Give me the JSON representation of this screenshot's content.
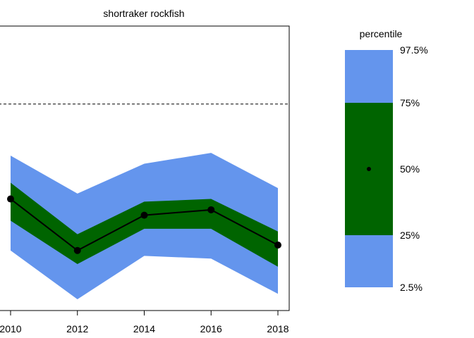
{
  "chart_data": {
    "type": "area",
    "title": "shortraker rockfish",
    "xlabel": "",
    "ylabel": "",
    "x": [
      2010,
      2012,
      2014,
      2016,
      2018
    ],
    "x_ticks": [
      "2010",
      "2012",
      "2014",
      "2016",
      "2018"
    ],
    "xlim": [
      2010,
      2018
    ],
    "ylim": [
      0,
      1
    ],
    "y_axis_ticks_shown": false,
    "grid": false,
    "reference_line": {
      "y": 0.72,
      "style": "dashed",
      "color": "#000000"
    },
    "bands": [
      {
        "percentile_range": "2.5%-97.5%",
        "color": "#6495ED",
        "lower": [
          0.18,
          0.0,
          0.16,
          0.15,
          0.02
        ],
        "upper": [
          0.53,
          0.39,
          0.5,
          0.54,
          0.41
        ]
      },
      {
        "percentile_range": "25%-75%",
        "color": "#006400",
        "lower": [
          0.29,
          0.13,
          0.26,
          0.26,
          0.12
        ],
        "upper": [
          0.43,
          0.24,
          0.36,
          0.37,
          0.25
        ]
      }
    ],
    "median": {
      "percentile": "50%",
      "color": "#000000",
      "values": [
        0.37,
        0.18,
        0.31,
        0.33,
        0.2
      ]
    }
  },
  "legend": {
    "title": "percentile",
    "labels": [
      "97.5%",
      "75%",
      "50%",
      "25%",
      "2.5%"
    ],
    "outer_color": "#6495ED",
    "inner_color": "#006400",
    "dot_color": "#000000",
    "placement": "right"
  }
}
